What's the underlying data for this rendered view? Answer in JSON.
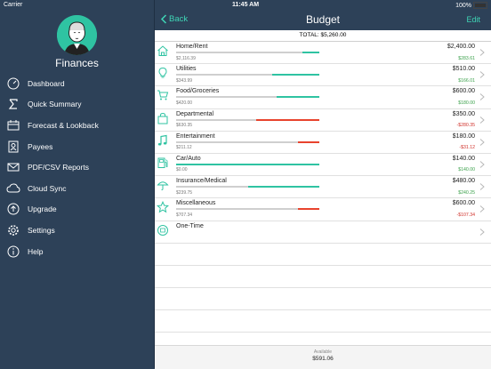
{
  "status": {
    "carrier": "Carrier",
    "time": "11:45 AM",
    "battery": "100%"
  },
  "app": {
    "name": "Finances"
  },
  "sidebar": {
    "items": [
      {
        "label": "Dashboard",
        "icon": "dashboard-icon"
      },
      {
        "label": "Quick Summary",
        "icon": "sigma-icon"
      },
      {
        "label": "Forecast & Lookback",
        "icon": "forecast-icon"
      },
      {
        "label": "Payees",
        "icon": "payees-icon"
      },
      {
        "label": "PDF/CSV Reports",
        "icon": "mail-icon"
      },
      {
        "label": "Cloud Sync",
        "icon": "cloud-icon"
      },
      {
        "label": "Upgrade",
        "icon": "upgrade-icon"
      },
      {
        "label": "Settings",
        "icon": "gear-icon"
      },
      {
        "label": "Help",
        "icon": "info-icon"
      }
    ]
  },
  "navbar": {
    "back": "Back",
    "title": "Budget",
    "edit": "Edit"
  },
  "total": "TOTAL: $5,260.00",
  "colors": {
    "accent": "#2fc3a2",
    "over": "#e8432d",
    "sidebar": "#2d4158",
    "positive": "#3aa04a",
    "negative": "#d0302a"
  },
  "categories": [
    {
      "name": "Home/Rent",
      "spent": "$2,116.39",
      "budget": "$2,400.00",
      "remaining": "$283.61",
      "over": false,
      "progress": 0.88,
      "icon": "house-icon"
    },
    {
      "name": "Utilities",
      "spent": "$343.99",
      "budget": "$510.00",
      "remaining": "$166.01",
      "over": false,
      "progress": 0.67,
      "icon": "bulb-icon"
    },
    {
      "name": "Food/Groceries",
      "spent": "$420.00",
      "budget": "$600.00",
      "remaining": "$180.00",
      "over": false,
      "progress": 0.7,
      "icon": "cart-icon"
    },
    {
      "name": "Departmental",
      "spent": "$630.35",
      "budget": "$350.00",
      "remaining": "-$280.35",
      "over": true,
      "progress": 0.56,
      "icon": "bag-icon"
    },
    {
      "name": "Entertainment",
      "spent": "$211.12",
      "budget": "$180.00",
      "remaining": "-$31.12",
      "over": true,
      "progress": 0.85,
      "icon": "music-icon"
    },
    {
      "name": "Car/Auto",
      "spent": "$0.00",
      "budget": "$140.00",
      "remaining": "$140.00",
      "over": false,
      "progress": 0.0,
      "icon": "fuel-icon"
    },
    {
      "name": "Insurance/Medical",
      "spent": "$239.75",
      "budget": "$480.00",
      "remaining": "$240.25",
      "over": false,
      "progress": 0.5,
      "icon": "umbrella-icon"
    },
    {
      "name": "Miscellaneous",
      "spent": "$707.34",
      "budget": "$600.00",
      "remaining": "-$107.34",
      "over": true,
      "progress": 0.85,
      "icon": "star-icon"
    }
  ],
  "onetime": {
    "name": "One-Time",
    "icon": "onetime-icon"
  },
  "footer": {
    "label": "Available",
    "value": "$591.06"
  }
}
